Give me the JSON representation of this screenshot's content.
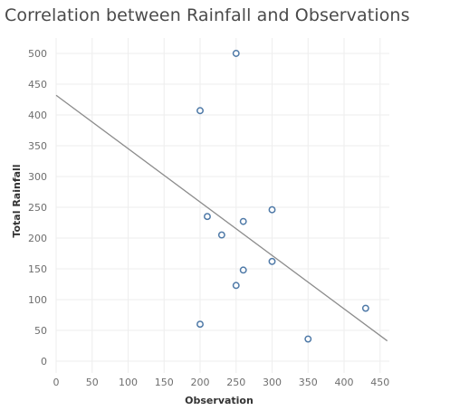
{
  "chart_data": {
    "type": "scatter",
    "title": "Correlation between Rainfall and Observations",
    "xlabel": "Observation",
    "ylabel": "Total Rainfall",
    "xlim": [
      0,
      460
    ],
    "ylim": [
      0,
      510
    ],
    "x_ticks": [
      0,
      50,
      100,
      150,
      200,
      250,
      300,
      350,
      400,
      450
    ],
    "y_ticks": [
      0,
      50,
      100,
      150,
      200,
      250,
      300,
      350,
      400,
      450,
      500
    ],
    "grid": true,
    "points": [
      {
        "x": 250,
        "y": 500
      },
      {
        "x": 200,
        "y": 407
      },
      {
        "x": 300,
        "y": 246
      },
      {
        "x": 210,
        "y": 235
      },
      {
        "x": 260,
        "y": 227
      },
      {
        "x": 230,
        "y": 205
      },
      {
        "x": 300,
        "y": 162
      },
      {
        "x": 260,
        "y": 148
      },
      {
        "x": 250,
        "y": 123
      },
      {
        "x": 430,
        "y": 86
      },
      {
        "x": 200,
        "y": 60
      },
      {
        "x": 350,
        "y": 36
      }
    ],
    "trend_line": {
      "x": [
        0,
        460
      ],
      "y": [
        432,
        33
      ]
    },
    "colors": {
      "marker": "#4e79a7",
      "trend": "#8c8c8c",
      "grid": "#eeeeee"
    }
  }
}
